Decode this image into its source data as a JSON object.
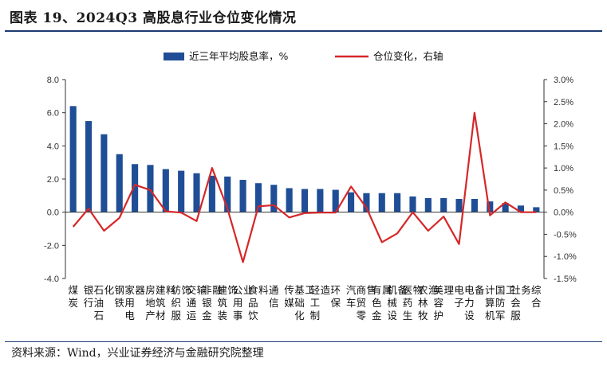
{
  "title": "图表 19、2024Q3 高股息行业仓位变化情况",
  "source": "资料来源：Wind，兴业证券经济与金融研究院整理",
  "colors": {
    "bar": "#1f4e96",
    "line": "#d62728",
    "rule": "#1f3b73"
  },
  "chart_data": {
    "type": "bar",
    "legend": [
      "近三年平均股息率，%",
      "仓位变化，右轴"
    ],
    "categories": [
      "煤炭",
      "银行",
      "石油石化",
      "钢铁",
      "家用电器",
      "房地产",
      "建筑材料",
      "纺织服饰",
      "交通运输",
      "非银金融",
      "建筑装饰",
      "公用事业",
      "食品饮料",
      "通信",
      "传媒",
      "基础化工",
      "轻工制造",
      "环保",
      "汽车",
      "商贸零售",
      "有色金属",
      "机械设备",
      "医药生物",
      "农林牧渔",
      "美容护理",
      "电子",
      "电力设备",
      "计算机",
      "国防军工",
      "社会服务",
      "综合"
    ],
    "series": [
      {
        "name": "近三年平均股息率，%",
        "axis": "left",
        "type": "bar",
        "values": [
          6.4,
          5.5,
          4.7,
          3.5,
          2.9,
          2.85,
          2.6,
          2.5,
          2.35,
          2.2,
          2.15,
          1.95,
          1.75,
          1.65,
          1.45,
          1.4,
          1.4,
          1.35,
          1.2,
          1.15,
          1.15,
          1.15,
          0.95,
          0.85,
          0.85,
          0.8,
          0.8,
          0.65,
          0.55,
          0.4,
          0.3
        ]
      },
      {
        "name": "仓位变化，右轴",
        "axis": "right",
        "type": "line",
        "values": [
          -0.33,
          0.08,
          -0.42,
          -0.13,
          0.62,
          0.5,
          0.02,
          -0.01,
          -0.2,
          1.0,
          0.08,
          -1.13,
          0.13,
          0.16,
          -0.12,
          -0.02,
          -0.01,
          -0.01,
          0.58,
          0.1,
          -0.68,
          -0.48,
          0.0,
          -0.42,
          -0.1,
          -0.72,
          2.25,
          -0.07,
          0.22,
          0.0,
          0.0
        ]
      }
    ],
    "left_axis": {
      "min": -4.0,
      "max": 8.0,
      "step": 2.0,
      "ticks": [
        "-4.0",
        "-2.0",
        "0.0",
        "2.0",
        "4.0",
        "6.0",
        "8.0"
      ]
    },
    "right_axis": {
      "min": -1.5,
      "max": 3.0,
      "step": 0.5,
      "ticks": [
        "-1.5%",
        "-1.0%",
        "-0.5%",
        "0.0%",
        "0.5%",
        "1.0%",
        "1.5%",
        "2.0%",
        "2.5%",
        "3.0%"
      ]
    },
    "grid": false,
    "legend_position": "top"
  }
}
